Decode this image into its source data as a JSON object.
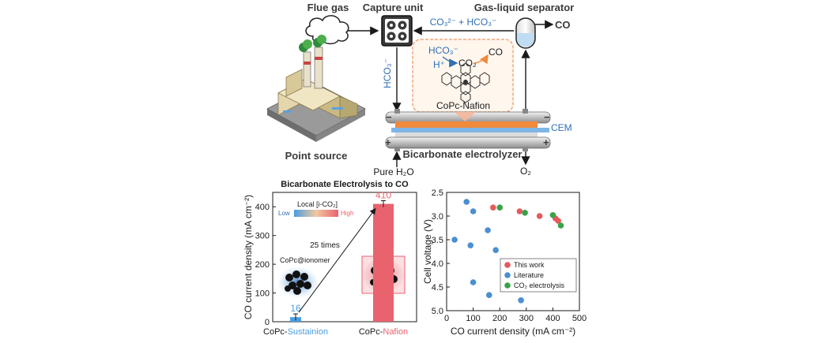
{
  "diagram": {
    "flue_gas": "Flue gas",
    "capture_unit": "Capture unit",
    "gas_liquid_separator": "Gas-liquid separator",
    "carbonate_label": "CO₃²⁻ + HCO₃⁻",
    "co_out": "CO",
    "hco3_down": "HCO₃⁻",
    "inset_hco3": "HCO₃⁻",
    "inset_hplus": "H⁺",
    "inset_co2": "CO₂",
    "inset_co": "CO",
    "catalyst": "CoPc-Nafion",
    "cem": "CEM",
    "point_source": "Point source",
    "electrolyzer": "Bicarbonate electrolyzer",
    "pure_water": "Pure H₂O",
    "o2_out": "O₂",
    "minus_top": "−",
    "minus_right": "−",
    "plus_left": "+",
    "plus_right": "+",
    "colors": {
      "blue": "#2f6fb3",
      "orange": "#f08a3c",
      "red": "#e55a5a",
      "green": "#3aa24a"
    }
  },
  "chart_left": {
    "title": "Bicarbonate Electrolysis to CO",
    "ylabel": "CO current density (mA cm⁻²)",
    "colorbar_title": "Local [i-CO₂]",
    "colorbar_low": "Low",
    "colorbar_high": "High",
    "annotation": "25 times",
    "ionomer_label": "CoPc@ionomer",
    "cat_prefix_1": "CoPc-",
    "cat_suffix_1": "Sustainion",
    "cat_prefix_2": "CoPc-",
    "cat_suffix_2": "Nafion"
  },
  "chart_right": {
    "xlabel": "CO current density (mA cm⁻²)",
    "ylabel": "Cell voltage (V)",
    "legend": [
      "This work",
      "Literature",
      "CO₂ electrolysis"
    ]
  },
  "chart_data": [
    {
      "type": "bar",
      "title": "Bicarbonate Electrolysis to CO",
      "categories": [
        "CoPc-Sustainion",
        "CoPc-Nafion"
      ],
      "values": [
        16,
        410
      ],
      "data_labels": [
        "16",
        "410"
      ],
      "ylabel": "CO current density (mA cm⁻²)",
      "ylim": [
        0,
        450
      ],
      "yticks": [
        0,
        100,
        200,
        300,
        400
      ],
      "colors": [
        "#4a9de0",
        "#e8636e"
      ]
    },
    {
      "type": "scatter",
      "xlabel": "CO current density (mA cm⁻²)",
      "ylabel": "Cell voltage (V)",
      "xlim": [
        0,
        500
      ],
      "ylim": [
        2.5,
        5.0
      ],
      "y_inverted": true,
      "xticks": [
        0,
        100,
        200,
        300,
        400,
        500
      ],
      "yticks": [
        2.5,
        3.0,
        3.5,
        4.0,
        4.5,
        5.0
      ],
      "legend_position": "bottom-right",
      "series": [
        {
          "name": "This work",
          "color": "#e55a5a",
          "x": [
            175,
            275,
            350,
            410,
            420
          ],
          "y": [
            2.82,
            2.9,
            3.0,
            3.05,
            3.1
          ]
        },
        {
          "name": "Literature",
          "color": "#4a8fd0",
          "x": [
            75,
            100,
            30,
            155,
            185,
            90,
            100,
            160,
            280
          ],
          "y": [
            2.7,
            2.9,
            3.5,
            3.3,
            3.72,
            3.62,
            4.4,
            4.67,
            4.78
          ]
        },
        {
          "name": "CO₂ electrolysis",
          "color": "#3aa24a",
          "x": [
            200,
            295,
            400,
            430
          ],
          "y": [
            2.82,
            2.93,
            2.98,
            3.2
          ]
        }
      ]
    }
  ]
}
